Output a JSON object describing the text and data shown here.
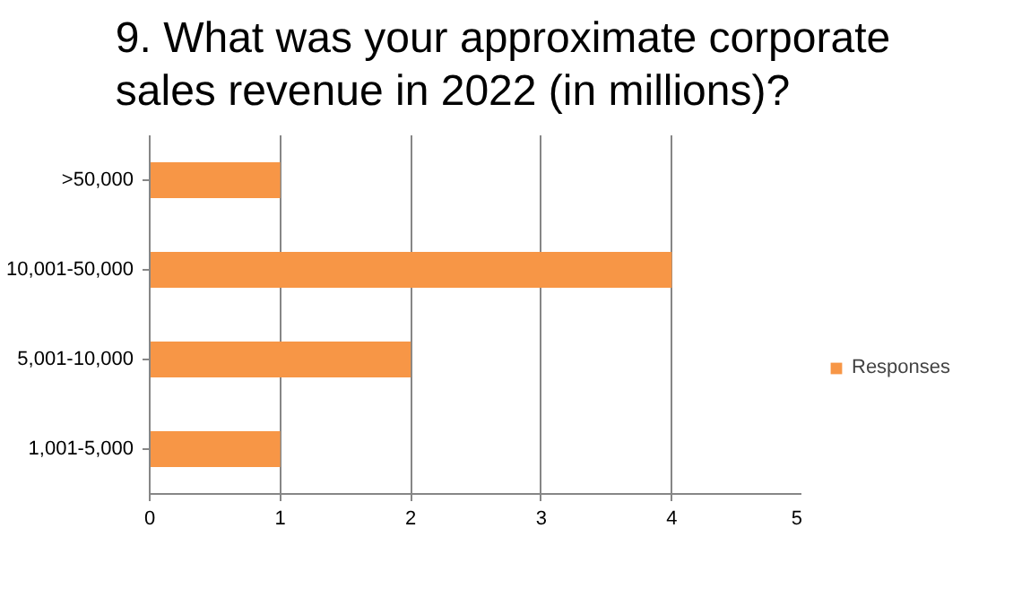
{
  "chart_data": {
    "type": "bar",
    "orientation": "horizontal",
    "title": "9. What was your approximate corporate\nsales revenue in 2022 (in millions)?",
    "categories": [
      ">50,000",
      "10,001-50,000",
      "5,001-10,000",
      "1,001-5,000"
    ],
    "series": [
      {
        "name": "Responses",
        "color": "#f79646",
        "values": [
          1,
          4,
          2,
          1
        ]
      }
    ],
    "xlim": [
      0,
      5
    ],
    "xticks": [
      0,
      1,
      2,
      3,
      4,
      5
    ],
    "grid": "x",
    "legend": "right"
  }
}
